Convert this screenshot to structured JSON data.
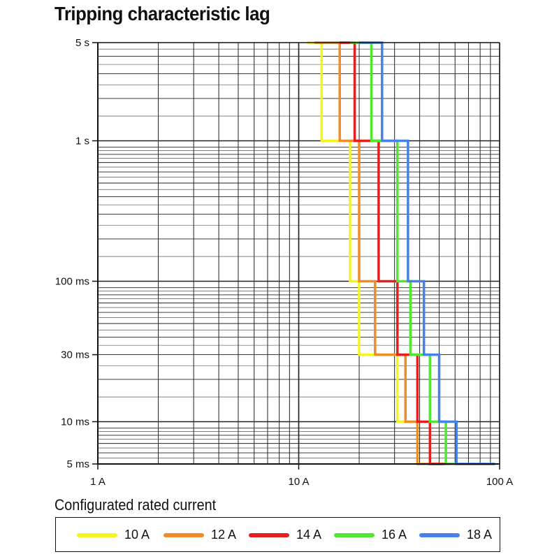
{
  "chart_data": {
    "type": "line",
    "title": "Tripping characteristic lag",
    "xlabel": "Configurated rated current",
    "ylabel": "",
    "x_scale": "log",
    "y_scale": "log",
    "xlim": [
      1,
      100
    ],
    "ylim": [
      0.005,
      5
    ],
    "x_ticks": [
      {
        "value": 1,
        "label": "1 A"
      },
      {
        "value": 10,
        "label": "10 A"
      },
      {
        "value": 100,
        "label": "100 A"
      }
    ],
    "y_ticks": [
      {
        "value": 5,
        "label": "5 s"
      },
      {
        "value": 1,
        "label": "1 s"
      },
      {
        "value": 0.1,
        "label": "100 ms"
      },
      {
        "value": 0.03,
        "label": "30 ms"
      },
      {
        "value": 0.01,
        "label": "10 ms"
      },
      {
        "value": 0.005,
        "label": "5 ms"
      }
    ],
    "grid": true,
    "legend_position": "bottom",
    "series": [
      {
        "name": "10 A",
        "color": "#f5f51e",
        "steps": [
          [
            11,
            5
          ],
          [
            13,
            5
          ],
          [
            13,
            1
          ],
          [
            18,
            1
          ],
          [
            18,
            0.1
          ],
          [
            20,
            0.1
          ],
          [
            20,
            0.03
          ],
          [
            31,
            0.03
          ],
          [
            31,
            0.01
          ],
          [
            34,
            0.01
          ]
        ]
      },
      {
        "name": "12 A",
        "color": "#f08c28",
        "steps": [
          [
            12,
            5
          ],
          [
            16,
            5
          ],
          [
            16,
            1
          ],
          [
            20,
            1
          ],
          [
            20,
            0.1
          ],
          [
            24,
            0.1
          ],
          [
            24,
            0.03
          ],
          [
            34,
            0.03
          ],
          [
            34,
            0.01
          ],
          [
            39,
            0.01
          ],
          [
            39,
            0.005
          ],
          [
            51,
            0.005
          ]
        ]
      },
      {
        "name": "14 A",
        "color": "#e61e1e",
        "steps": [
          [
            16,
            5
          ],
          [
            19,
            5
          ],
          [
            19,
            1
          ],
          [
            25,
            1
          ],
          [
            25,
            0.1
          ],
          [
            31,
            0.1
          ],
          [
            31,
            0.03
          ],
          [
            39,
            0.03
          ],
          [
            39,
            0.01
          ],
          [
            45,
            0.01
          ],
          [
            45,
            0.005
          ],
          [
            57,
            0.005
          ]
        ]
      },
      {
        "name": "16 A",
        "color": "#50e632",
        "steps": [
          [
            18,
            5
          ],
          [
            23,
            5
          ],
          [
            23,
            1
          ],
          [
            31,
            1
          ],
          [
            31,
            0.1
          ],
          [
            36,
            0.1
          ],
          [
            36,
            0.03
          ],
          [
            45,
            0.03
          ],
          [
            45,
            0.01
          ],
          [
            54,
            0.01
          ],
          [
            54,
            0.005
          ],
          [
            61,
            0.005
          ]
        ]
      },
      {
        "name": "18 A",
        "color": "#4682e6",
        "steps": [
          [
            20,
            5
          ],
          [
            26,
            5
          ],
          [
            26,
            1
          ],
          [
            35,
            1
          ],
          [
            35,
            0.1
          ],
          [
            42,
            0.1
          ],
          [
            42,
            0.03
          ],
          [
            50,
            0.03
          ],
          [
            50,
            0.01
          ],
          [
            61,
            0.01
          ],
          [
            61,
            0.005
          ],
          [
            95,
            0.005
          ]
        ]
      }
    ]
  }
}
